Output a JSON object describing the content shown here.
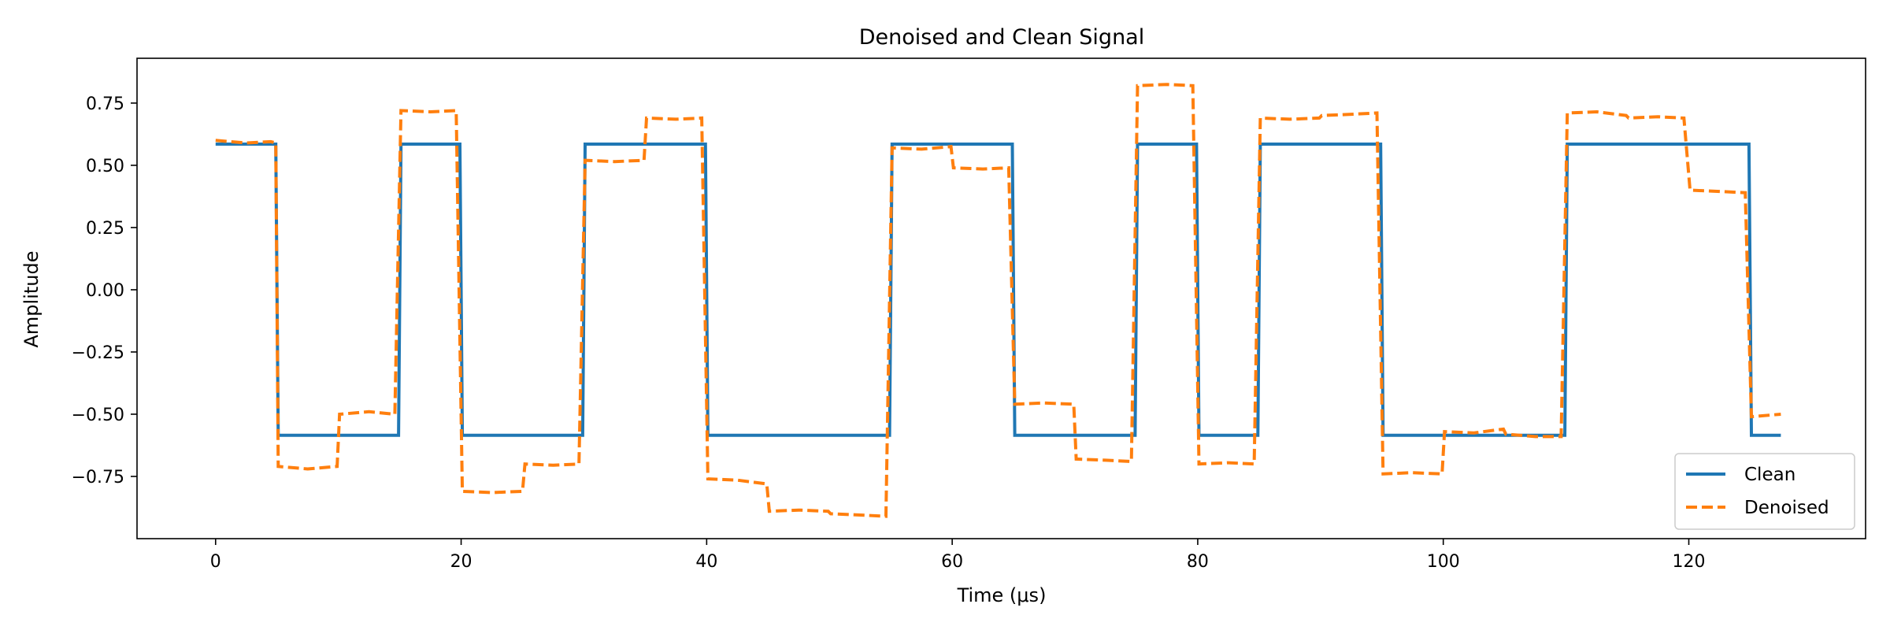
{
  "chart_data": {
    "type": "line",
    "title": "Denoised and Clean Signal",
    "xlabel": "Time (μs)",
    "ylabel": "Amplitude",
    "xlim": [
      -6.4,
      134.4
    ],
    "ylim": [
      -1.0,
      0.93
    ],
    "xticks": [
      0,
      20,
      40,
      60,
      80,
      100,
      120
    ],
    "yticks": [
      -0.75,
      -0.5,
      -0.25,
      0.0,
      0.25,
      0.5,
      0.75
    ],
    "ytick_labels": [
      "−0.75",
      "−0.50",
      "−0.25",
      "0.00",
      "0.25",
      "0.50",
      "0.75"
    ],
    "grid": false,
    "legend_position": "lower-right",
    "series": [
      {
        "name": "Clean",
        "color": "#1f77b4",
        "style": "solid",
        "x": [
          0,
          4.9,
          5.1,
          14.9,
          15.1,
          19.9,
          20.1,
          29.9,
          30.1,
          39.9,
          40.1,
          54.9,
          55.1,
          64.9,
          65.1,
          74.9,
          75.1,
          79.9,
          80.1,
          84.9,
          85.1,
          94.9,
          95.1,
          109.9,
          110.1,
          124.9,
          125.1,
          127.5
        ],
        "y": [
          0.585,
          0.585,
          -0.585,
          -0.585,
          0.585,
          0.585,
          -0.585,
          -0.585,
          0.585,
          0.585,
          -0.585,
          -0.585,
          0.585,
          0.585,
          -0.585,
          -0.585,
          0.585,
          0.585,
          -0.585,
          -0.585,
          0.585,
          0.585,
          -0.585,
          -0.585,
          0.585,
          0.585,
          -0.585,
          -0.585
        ]
      },
      {
        "name": "Denoised",
        "color": "#ff7f0e",
        "style": "dashed",
        "x": [
          0,
          2.5,
          4.5,
          4.9,
          5.1,
          7.5,
          9.9,
          10.1,
          12.5,
          14.6,
          15.1,
          17.5,
          19.6,
          20.1,
          22.5,
          25.0,
          25.2,
          27.5,
          29.6,
          30.1,
          32.5,
          34.9,
          35.1,
          37.5,
          39.6,
          40.1,
          42.5,
          44.9,
          45.1,
          47.5,
          49.9,
          50.1,
          52.5,
          54.6,
          55.1,
          57.5,
          59.9,
          60.1,
          62.5,
          64.6,
          65.1,
          67.5,
          69.9,
          70.1,
          72.5,
          74.6,
          75.1,
          77.5,
          79.6,
          80.1,
          82.5,
          84.6,
          85.1,
          87.5,
          89.9,
          90.1,
          92.5,
          94.6,
          95.1,
          97.5,
          99.9,
          100.1,
          102.5,
          104.9,
          105.1,
          107.5,
          109.6,
          110.1,
          112.5,
          114.9,
          115.1,
          117.5,
          119.6,
          120.1,
          122.5,
          124.6,
          125.1,
          127.5
        ],
        "y": [
          0.6,
          0.59,
          0.595,
          0.59,
          -0.71,
          -0.72,
          -0.71,
          -0.5,
          -0.49,
          -0.5,
          0.72,
          0.715,
          0.72,
          -0.81,
          -0.815,
          -0.81,
          -0.7,
          -0.705,
          -0.7,
          0.52,
          0.515,
          0.52,
          0.69,
          0.685,
          0.69,
          -0.76,
          -0.765,
          -0.78,
          -0.89,
          -0.885,
          -0.89,
          -0.9,
          -0.905,
          -0.91,
          0.57,
          0.565,
          0.575,
          0.49,
          0.485,
          0.49,
          -0.46,
          -0.455,
          -0.46,
          -0.68,
          -0.685,
          -0.69,
          0.82,
          0.825,
          0.82,
          -0.7,
          -0.695,
          -0.7,
          0.69,
          0.685,
          0.69,
          0.7,
          0.705,
          0.71,
          -0.74,
          -0.735,
          -0.74,
          -0.57,
          -0.575,
          -0.56,
          -0.58,
          -0.59,
          -0.59,
          0.71,
          0.715,
          0.7,
          0.69,
          0.695,
          0.69,
          0.4,
          0.395,
          0.39,
          -0.51,
          -0.5
        ]
      }
    ]
  }
}
